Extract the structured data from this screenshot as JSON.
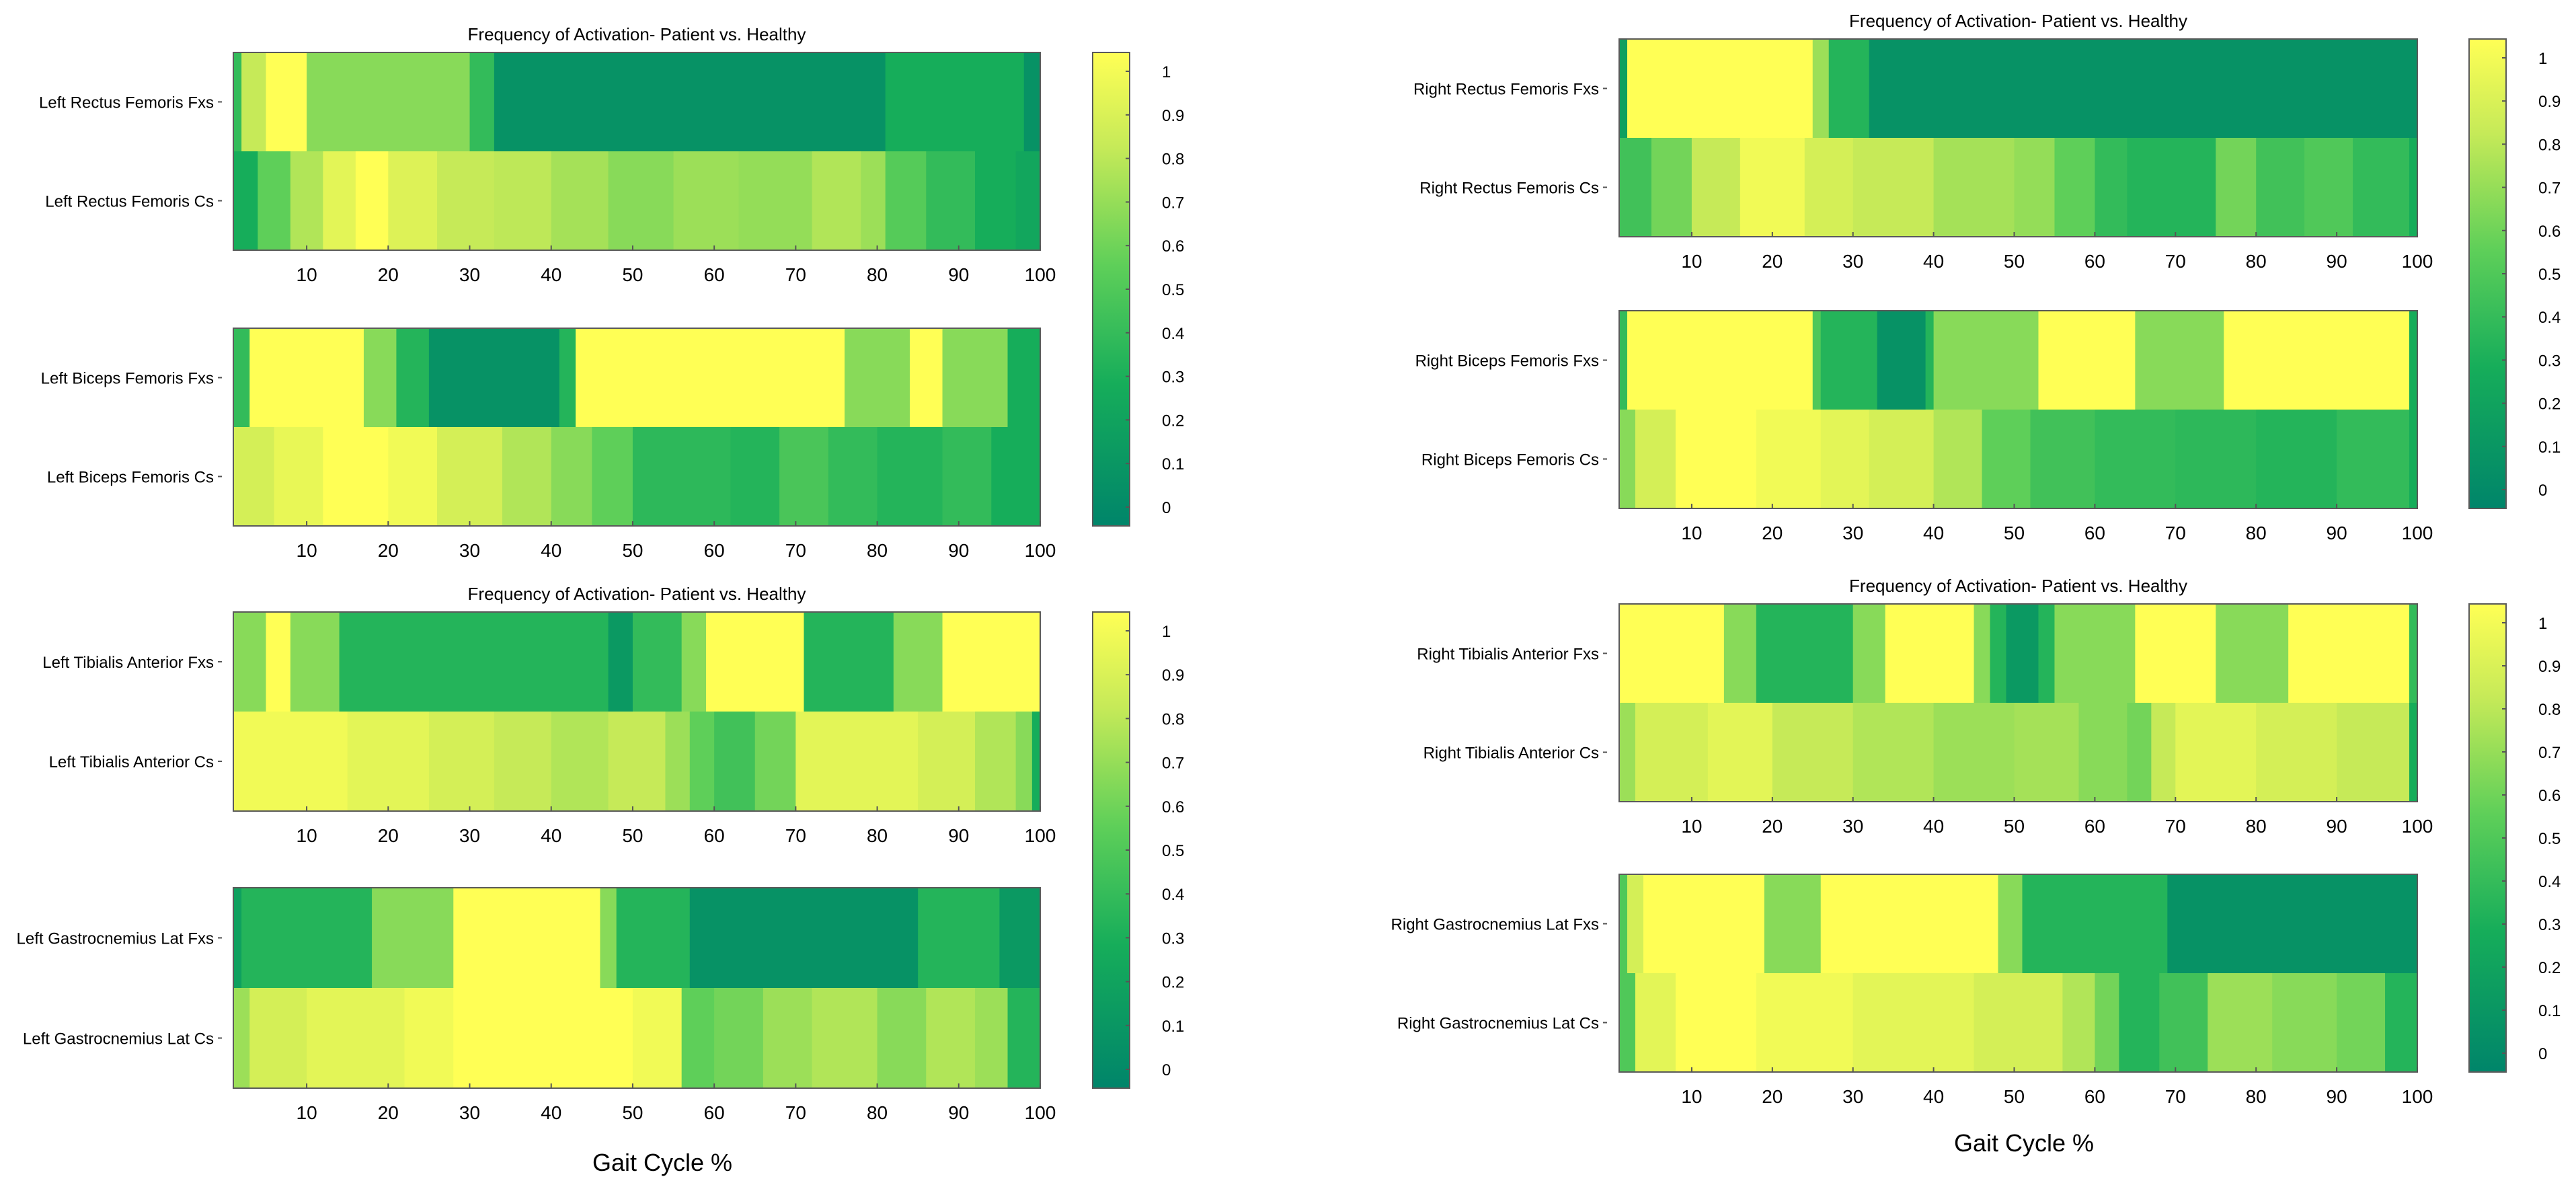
{
  "figure": {
    "x_caption": "Gait Cycle %"
  },
  "colors": {
    "low": "#00856a",
    "mid": "#5ecf59",
    "high": "#ffff55",
    "frame": "#5a5a5a"
  },
  "chart_data": [
    {
      "type": "heatmap",
      "id": "left-rf",
      "title": "Frequency of Activation- Patient vs. Healthy",
      "xlabel": "Gait Cycle %",
      "xlim": [
        1,
        100
      ],
      "x_ticks": [
        10,
        20,
        30,
        40,
        50,
        60,
        70,
        80,
        90,
        100
      ],
      "colorbar_ticks": [
        "1",
        "0.9",
        "0.8",
        "0.7",
        "0.6",
        "0.5",
        "0.4",
        "0.3",
        "0.2",
        "0.1",
        "0"
      ],
      "clim": [
        0,
        1
      ],
      "rows": [
        {
          "label": "Left Rectus Femoris Fxs",
          "breaks": [
            1,
            2,
            5,
            10,
            30,
            33,
            81,
            98,
            100
          ],
          "values": [
            0.4,
            0.8,
            1.0,
            0.65,
            0.4,
            0.1,
            0.3,
            0.1
          ]
        },
        {
          "label": "Left Rectus Femoris Cs",
          "breaks": [
            1,
            4,
            8,
            12,
            16,
            20,
            26,
            33,
            40,
            47,
            55,
            63,
            72,
            78,
            81,
            86,
            92,
            97,
            100
          ],
          "values": [
            0.3,
            0.55,
            0.75,
            0.9,
            1.0,
            0.88,
            0.8,
            0.78,
            0.72,
            0.65,
            0.7,
            0.68,
            0.75,
            0.7,
            0.52,
            0.4,
            0.3,
            0.25
          ]
        }
      ]
    },
    {
      "type": "heatmap",
      "id": "left-bf",
      "title": "",
      "xlabel": "Gait Cycle %",
      "xlim": [
        1,
        100
      ],
      "x_ticks": [
        10,
        20,
        30,
        40,
        50,
        60,
        70,
        80,
        90,
        100
      ],
      "colorbar_ticks": [
        "1",
        "0.9",
        "0.8",
        "0.7",
        "0.6",
        "0.5",
        "0.4",
        "0.3",
        "0.2",
        "0.1",
        "0"
      ],
      "clim": [
        0,
        1
      ],
      "rows": [
        {
          "label": "Left Biceps Femoris Fxs",
          "breaks": [
            1,
            3,
            17,
            21,
            25,
            41,
            43,
            76,
            84,
            88,
            96,
            100
          ],
          "values": [
            0.4,
            1.0,
            0.65,
            0.35,
            0.1,
            0.35,
            1.0,
            0.65,
            1.0,
            0.65,
            0.3
          ]
        },
        {
          "label": "Left Biceps Femoris Cs",
          "breaks": [
            1,
            6,
            12,
            20,
            26,
            34,
            40,
            45,
            50,
            62,
            68,
            74,
            80,
            88,
            94,
            100
          ],
          "values": [
            0.85,
            0.92,
            1.0,
            0.95,
            0.85,
            0.75,
            0.65,
            0.55,
            0.38,
            0.35,
            0.48,
            0.4,
            0.35,
            0.4,
            0.3
          ]
        }
      ]
    },
    {
      "type": "heatmap",
      "id": "left-ta",
      "title": "Frequency of Activation- Patient vs. Healthy",
      "xlabel": "Gait Cycle %",
      "xlim": [
        1,
        100
      ],
      "x_ticks": [
        10,
        20,
        30,
        40,
        50,
        60,
        70,
        80,
        90,
        100
      ],
      "colorbar_ticks": [
        "1",
        "0.9",
        "0.8",
        "0.7",
        "0.6",
        "0.5",
        "0.4",
        "0.3",
        "0.2",
        "0.1",
        "0"
      ],
      "clim": [
        0,
        1
      ],
      "rows": [
        {
          "label": "Left Tibialis Anterior Fxs",
          "breaks": [
            1,
            5,
            8,
            14,
            47,
            50,
            56,
            59,
            71,
            82,
            88,
            100
          ],
          "values": [
            0.65,
            1.0,
            0.65,
            0.35,
            0.15,
            0.4,
            0.65,
            1.0,
            0.35,
            0.65,
            1.0
          ]
        },
        {
          "label": "Left Tibialis Anterior Cs",
          "breaks": [
            1,
            15,
            25,
            33,
            40,
            47,
            54,
            57,
            60,
            65,
            70,
            85,
            92,
            97,
            99,
            100
          ],
          "values": [
            0.95,
            0.9,
            0.85,
            0.8,
            0.75,
            0.8,
            0.7,
            0.55,
            0.45,
            0.6,
            0.9,
            0.85,
            0.75,
            0.65,
            0.3
          ]
        }
      ]
    },
    {
      "type": "heatmap",
      "id": "left-gl",
      "title": "",
      "xlabel": "Gait Cycle %",
      "xlim": [
        1,
        100
      ],
      "x_ticks": [
        10,
        20,
        30,
        40,
        50,
        60,
        70,
        80,
        90,
        100
      ],
      "colorbar_ticks": [
        "1",
        "0.9",
        "0.8",
        "0.7",
        "0.6",
        "0.5",
        "0.4",
        "0.3",
        "0.2",
        "0.1",
        "0"
      ],
      "clim": [
        0,
        1
      ],
      "rows": [
        {
          "label": "Left Gastrocnemius Lat Fxs",
          "breaks": [
            1,
            2,
            18,
            28,
            46,
            48,
            57,
            85,
            95,
            100
          ],
          "values": [
            0.2,
            0.35,
            0.65,
            1.0,
            0.65,
            0.35,
            0.1,
            0.35,
            0.15
          ]
        },
        {
          "label": "Left Gastrocnemius Lat Cs",
          "breaks": [
            1,
            3,
            10,
            22,
            28,
            50,
            56,
            60,
            66,
            72,
            80,
            86,
            92,
            96,
            100
          ],
          "values": [
            0.7,
            0.85,
            0.9,
            0.95,
            1.0,
            0.95,
            0.55,
            0.6,
            0.7,
            0.75,
            0.65,
            0.75,
            0.7,
            0.35
          ]
        }
      ]
    },
    {
      "type": "heatmap",
      "id": "right-rf",
      "title": "Frequency of Activation- Patient vs. Healthy",
      "xlabel": "Gait Cycle %",
      "xlim": [
        1,
        100
      ],
      "x_ticks": [
        10,
        20,
        30,
        40,
        50,
        60,
        70,
        80,
        90,
        100
      ],
      "colorbar_ticks": [
        "1",
        "0.9",
        "0.8",
        "0.7",
        "0.6",
        "0.5",
        "0.4",
        "0.3",
        "0.2",
        "0.1",
        "0"
      ],
      "clim": [
        0,
        1
      ],
      "rows": [
        {
          "label": "Right Rectus Femoris Fxs",
          "breaks": [
            1,
            2,
            25,
            27,
            32,
            100
          ],
          "values": [
            0.2,
            1.0,
            0.7,
            0.35,
            0.1
          ]
        },
        {
          "label": "Right Rectus Femoris Cs",
          "breaks": [
            1,
            5,
            10,
            16,
            24,
            30,
            40,
            50,
            55,
            60,
            64,
            75,
            80,
            86,
            92,
            99,
            100
          ],
          "values": [
            0.45,
            0.6,
            0.8,
            0.95,
            0.85,
            0.8,
            0.72,
            0.68,
            0.55,
            0.4,
            0.35,
            0.6,
            0.45,
            0.5,
            0.4,
            0.3
          ]
        }
      ]
    },
    {
      "type": "heatmap",
      "id": "right-bf",
      "title": "",
      "xlabel": "Gait Cycle %",
      "xlim": [
        1,
        100
      ],
      "x_ticks": [
        10,
        20,
        30,
        40,
        50,
        60,
        70,
        80,
        90,
        100
      ],
      "colorbar_ticks": [
        "1",
        "0.9",
        "0.8",
        "0.7",
        "0.6",
        "0.5",
        "0.4",
        "0.3",
        "0.2",
        "0.1",
        "0"
      ],
      "clim": [
        0,
        1
      ],
      "rows": [
        {
          "label": "Right Biceps Femoris Fxs",
          "breaks": [
            1,
            2,
            25,
            26,
            33,
            39,
            40,
            53,
            65,
            76,
            99,
            100
          ],
          "values": [
            0.4,
            1.0,
            0.5,
            0.35,
            0.1,
            0.35,
            0.65,
            1.0,
            0.65,
            1.0,
            0.3
          ]
        },
        {
          "label": "Right Biceps Femoris Cs",
          "breaks": [
            1,
            3,
            8,
            18,
            26,
            32,
            40,
            46,
            52,
            60,
            70,
            80,
            90,
            99,
            100
          ],
          "values": [
            0.65,
            0.85,
            1.0,
            0.95,
            0.9,
            0.85,
            0.75,
            0.55,
            0.45,
            0.4,
            0.38,
            0.35,
            0.4,
            0.3
          ]
        }
      ]
    },
    {
      "type": "heatmap",
      "id": "right-ta",
      "title": "Frequency of Activation- Patient vs. Healthy",
      "xlabel": "Gait Cycle %",
      "xlim": [
        1,
        100
      ],
      "x_ticks": [
        10,
        20,
        30,
        40,
        50,
        60,
        70,
        80,
        90,
        100
      ],
      "colorbar_ticks": [
        "1",
        "0.9",
        "0.8",
        "0.7",
        "0.6",
        "0.5",
        "0.4",
        "0.3",
        "0.2",
        "0.1",
        "0"
      ],
      "clim": [
        0,
        1
      ],
      "rows": [
        {
          "label": "Right Tibialis Anterior Fxs",
          "breaks": [
            1,
            14,
            18,
            30,
            34,
            45,
            47,
            49,
            53,
            55,
            65,
            75,
            84,
            99,
            100
          ],
          "values": [
            1.0,
            0.65,
            0.35,
            0.65,
            1.0,
            0.65,
            0.35,
            0.15,
            0.35,
            0.65,
            1.0,
            0.65,
            1.0,
            0.4
          ]
        },
        {
          "label": "Right Tibialis Anterior Cs",
          "breaks": [
            1,
            3,
            12,
            20,
            30,
            40,
            50,
            58,
            64,
            67,
            70,
            80,
            90,
            99,
            100
          ],
          "values": [
            0.7,
            0.85,
            0.9,
            0.8,
            0.75,
            0.7,
            0.72,
            0.65,
            0.6,
            0.8,
            0.9,
            0.85,
            0.8,
            0.3
          ]
        }
      ]
    },
    {
      "type": "heatmap",
      "id": "right-gl",
      "title": "",
      "xlabel": "Gait Cycle %",
      "xlim": [
        1,
        100
      ],
      "x_ticks": [
        10,
        20,
        30,
        40,
        50,
        60,
        70,
        80,
        90,
        100
      ],
      "colorbar_ticks": [
        "1",
        "0.9",
        "0.8",
        "0.7",
        "0.6",
        "0.5",
        "0.4",
        "0.3",
        "0.2",
        "0.1",
        "0"
      ],
      "clim": [
        0,
        1
      ],
      "rows": [
        {
          "label": "Right Gastrocnemius Lat Fxs",
          "breaks": [
            1,
            2,
            4,
            19,
            26,
            48,
            51,
            69,
            100
          ],
          "values": [
            0.5,
            0.85,
            1.0,
            0.65,
            1.0,
            0.65,
            0.35,
            0.1
          ]
        },
        {
          "label": "Right  Gastrocnemius Lat Cs",
          "breaks": [
            1,
            3,
            8,
            18,
            30,
            45,
            56,
            60,
            63,
            68,
            74,
            82,
            90,
            96,
            100
          ],
          "values": [
            0.5,
            0.9,
            1.0,
            0.95,
            0.9,
            0.85,
            0.75,
            0.6,
            0.35,
            0.45,
            0.7,
            0.65,
            0.6,
            0.35
          ]
        }
      ]
    }
  ]
}
